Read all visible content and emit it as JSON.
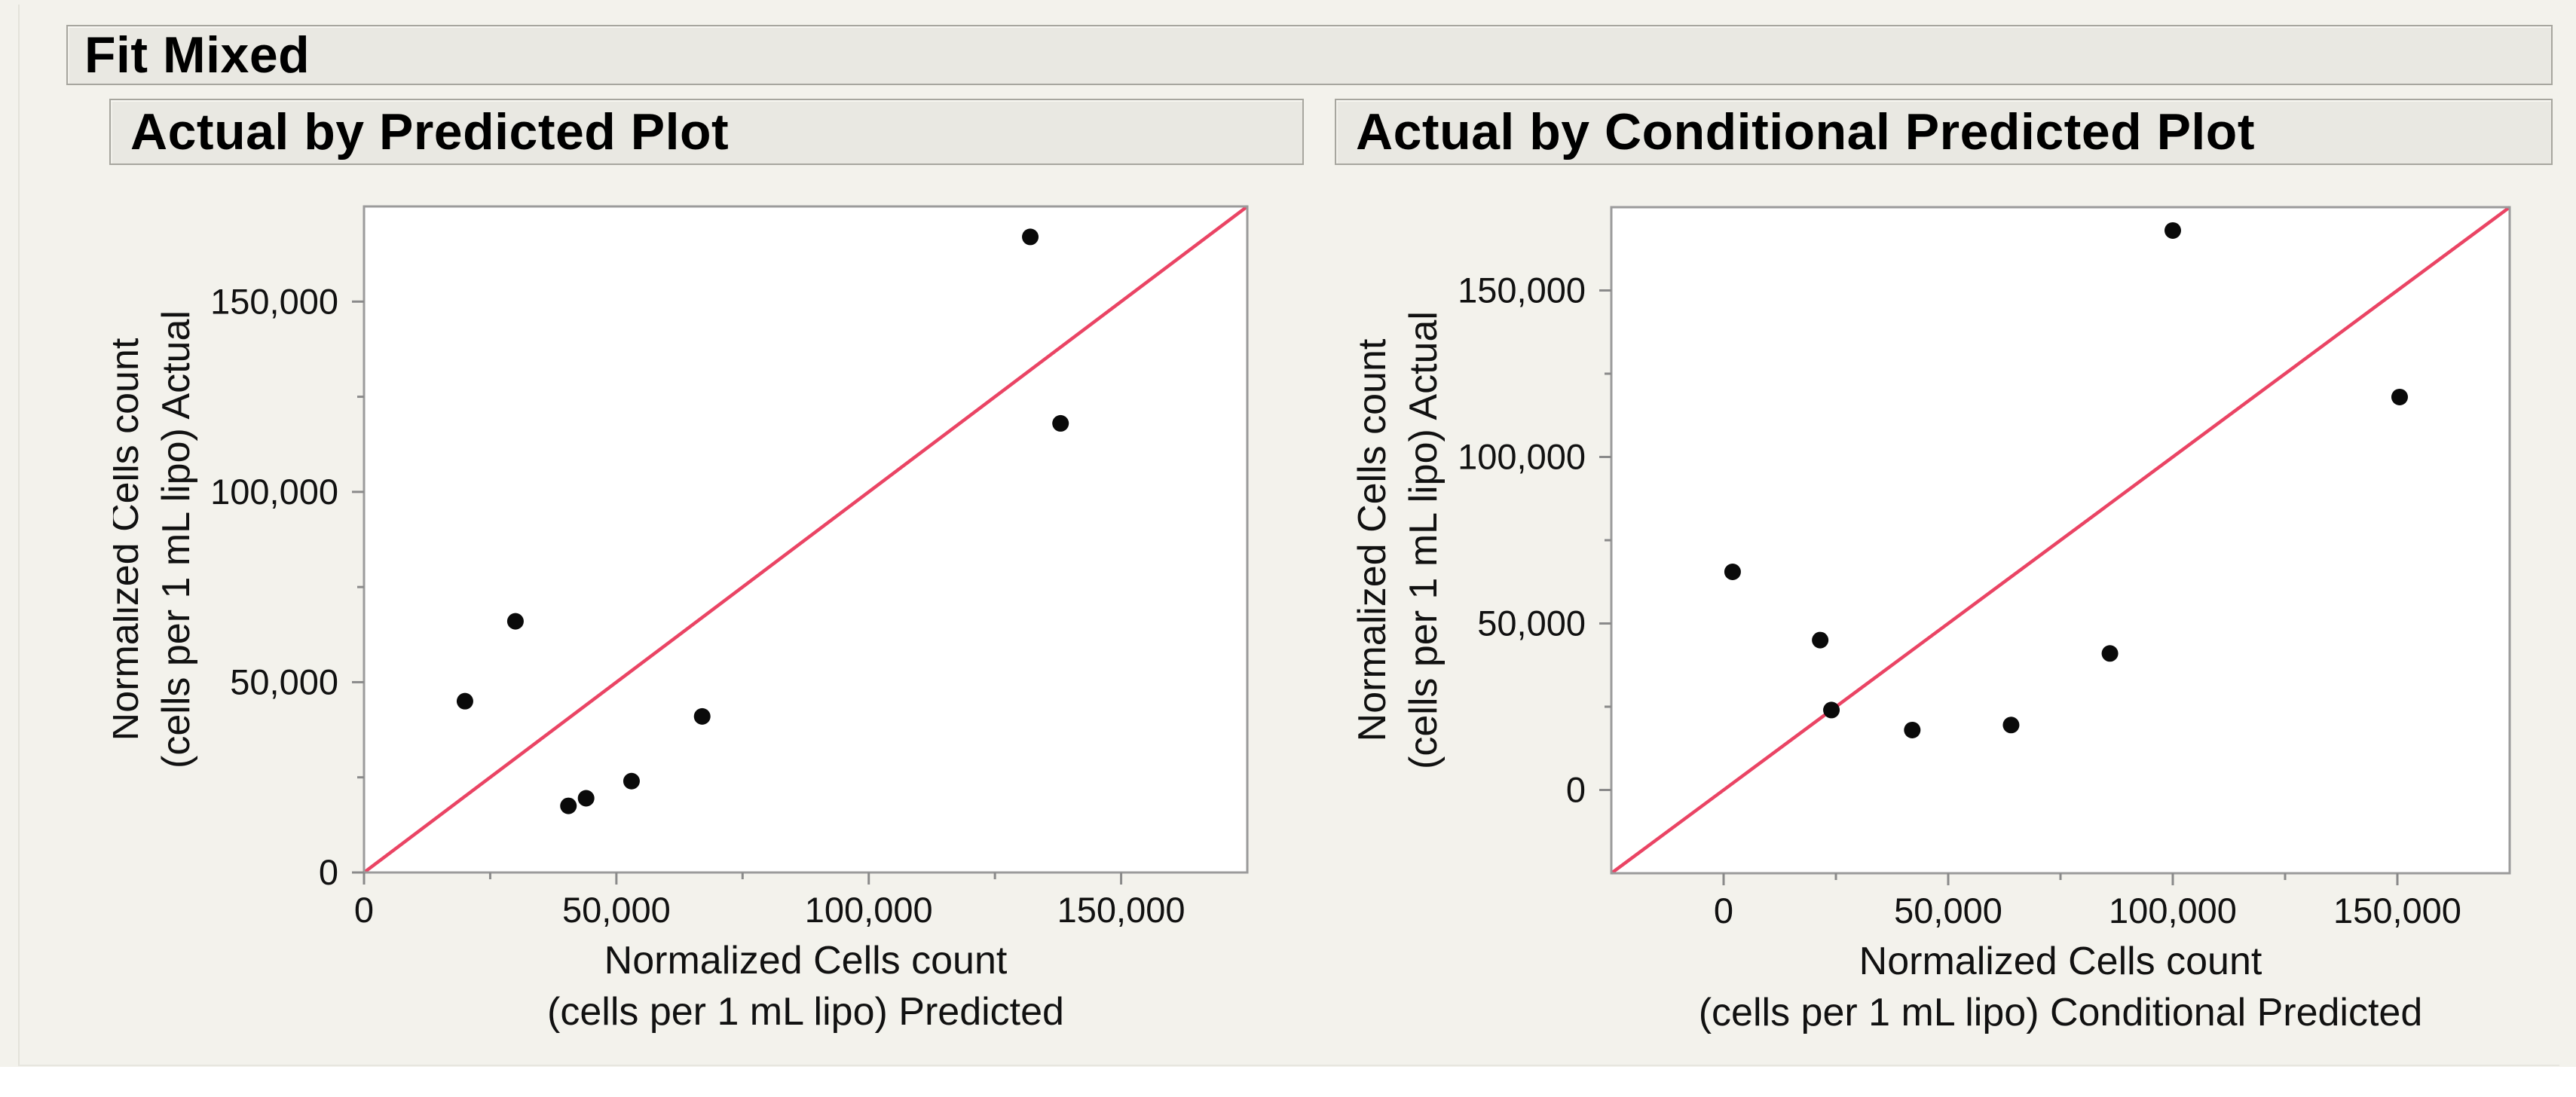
{
  "report": {
    "title": "Fit Mixed"
  },
  "style": {
    "panel_bg": "#f3f2ec",
    "header_bg": "#e9e8e2",
    "header_border": "#a7a69f",
    "plot_bg": "#ffffff",
    "frame_color": "#9b9b9b",
    "tick_color": "#8a8a8a",
    "label_color": "#111111",
    "identity_line_color": "#ea4464",
    "marker_color": "#0a0a0a"
  },
  "chart_data": [
    {
      "type": "scatter",
      "title": "Actual by Predicted Plot",
      "xlabel_lines": [
        "Normalized Cells count",
        "(cells per 1 mL lipo) Predicted"
      ],
      "ylabel_lines": [
        "Normalized Cells count",
        "(cells per 1 mL lipo) Actual"
      ],
      "xlim": [
        0,
        175000
      ],
      "ylim": [
        0,
        175000
      ],
      "grid": false,
      "legend": null,
      "x_ticks": {
        "values": [
          0,
          50000,
          100000,
          150000
        ],
        "labels": [
          "0",
          "50,000",
          "100,000",
          "150,000"
        ],
        "minor_interval": 25000
      },
      "y_ticks": {
        "values": [
          0,
          50000,
          100000,
          150000
        ],
        "labels": [
          "0",
          "50,000",
          "100,000",
          "150,000"
        ],
        "minor_interval": 25000
      },
      "identity_line": {
        "from_xy": [
          0,
          0
        ],
        "to_xy": [
          175000,
          175000
        ]
      },
      "points": [
        [
          132000,
          167000
        ],
        [
          138000,
          118000
        ],
        [
          30000,
          66000
        ],
        [
          20000,
          45000
        ],
        [
          67000,
          41000
        ],
        [
          53000,
          24000
        ],
        [
          44000,
          19500
        ],
        [
          40500,
          17500
        ]
      ]
    },
    {
      "type": "scatter",
      "title": "Actual by Conditional Predicted Plot",
      "xlabel_lines": [
        "Normalized Cells count",
        "(cells per 1 mL lipo) Conditional Predicted"
      ],
      "ylabel_lines": [
        "Normalized Cells count",
        "(cells per 1 mL lipo) Actual"
      ],
      "xlim": [
        -25000,
        175000
      ],
      "ylim": [
        -25000,
        175000
      ],
      "grid": false,
      "legend": null,
      "x_ticks": {
        "values": [
          0,
          50000,
          100000,
          150000
        ],
        "labels": [
          "0",
          "50,000",
          "100,000",
          "150,000"
        ],
        "minor_interval": 25000
      },
      "y_ticks": {
        "values": [
          0,
          50000,
          100000,
          150000
        ],
        "labels": [
          "0",
          "50,000",
          "100,000",
          "150,000"
        ],
        "minor_interval": 25000
      },
      "identity_line": {
        "from_xy": [
          -25000,
          -25000
        ],
        "to_xy": [
          175000,
          175000
        ]
      },
      "points": [
        [
          100000,
          168000
        ],
        [
          150500,
          118000
        ],
        [
          2000,
          65500
        ],
        [
          21500,
          45000
        ],
        [
          24000,
          24000
        ],
        [
          42000,
          18000
        ],
        [
          64000,
          19500
        ],
        [
          86000,
          41000
        ]
      ]
    }
  ]
}
